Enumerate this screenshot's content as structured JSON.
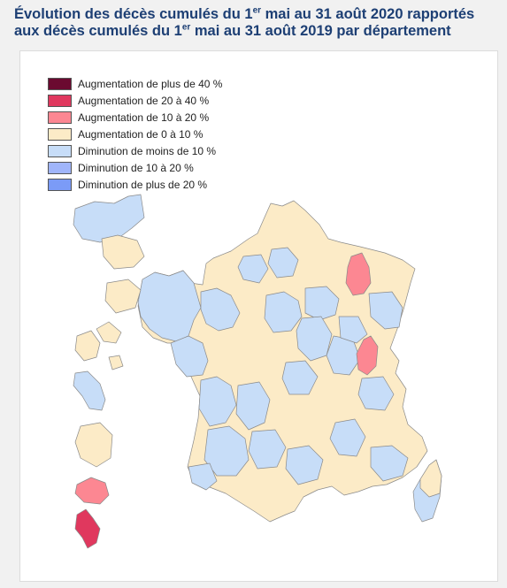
{
  "title": {
    "part1": "Évolution des décès cumulés du 1",
    "sup1": "er",
    "part2": " mai au 31 août 2020 rapportés aux décès cumulés du 1",
    "sup2": "er",
    "part3": " mai au 31 août 2019 par département"
  },
  "legend": [
    {
      "label": "Augmentation de plus de 40 %",
      "color": "#6b0a30"
    },
    {
      "label": "Augmentation de 20 à 40 %",
      "color": "#e0385e"
    },
    {
      "label": "Augmentation de 10 à 20 %",
      "color": "#fc8792"
    },
    {
      "label": "Augmentation de 0 à 10 %",
      "color": "#fcebc7"
    },
    {
      "label": "Diminution de moins de 10 %",
      "color": "#c7ddf8"
    },
    {
      "label": "Diminution de 10 à 20 %",
      "color": "#a0b5fa"
    },
    {
      "label": "Diminution de plus de 20 %",
      "color": "#7b9bf7"
    }
  ],
  "highlighted_departments": [
    {
      "region": "north-east department",
      "category": "Augmentation de 10 à 20 %"
    },
    {
      "region": "east department (Jura area)",
      "category": "Augmentation de 10 à 20 %"
    },
    {
      "region": "Mayotte",
      "category": "Augmentation de 10 à 20 %"
    },
    {
      "region": "La Réunion",
      "category": "Augmentation de 20 à 40 %"
    }
  ]
}
